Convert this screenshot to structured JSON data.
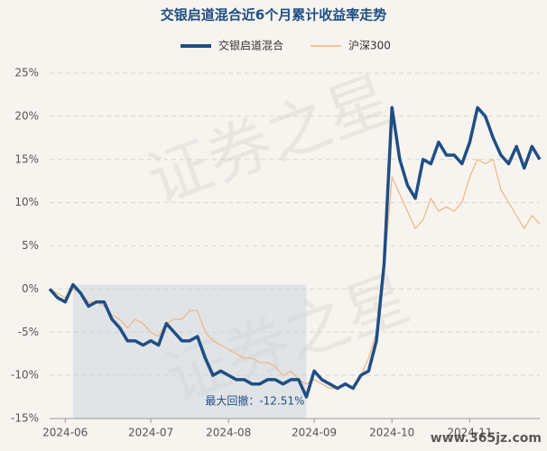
{
  "chart_data": {
    "type": "line",
    "title": "交银启道混合近6个月累计收益率走势",
    "categories": [
      null,
      null,
      "2024-06",
      null,
      null,
      null,
      null,
      null,
      null,
      null,
      null,
      null,
      null,
      "2024-07",
      null,
      null,
      null,
      null,
      null,
      null,
      null,
      null,
      null,
      "2024-08",
      null,
      null,
      null,
      null,
      null,
      null,
      null,
      null,
      null,
      null,
      "2024-09",
      null,
      null,
      null,
      null,
      null,
      null,
      null,
      null,
      null,
      "2024-10",
      null,
      null,
      null,
      null,
      null,
      null,
      null,
      null,
      null,
      "2024-11",
      null,
      null,
      null,
      null,
      null,
      null,
      null,
      null,
      null
    ],
    "series": [
      {
        "name": "交银启道混合",
        "color": "#1f4e85",
        "values": [
          0,
          -1,
          -1.5,
          0.5,
          -0.5,
          -2,
          -1.5,
          -1.5,
          -3.5,
          -4.5,
          -6,
          -6,
          -6.5,
          -6,
          -6.5,
          -4,
          -5,
          -6,
          -6,
          -5.5,
          -8,
          -10,
          -9.5,
          -10,
          -10.5,
          -10.5,
          -11,
          -11,
          -10.5,
          -10.5,
          -11,
          -10.5,
          -10.5,
          -12.5,
          -9.5,
          -10.5,
          -11,
          -11.5,
          -11,
          -11.5,
          -10,
          -9.5,
          -6,
          3,
          21,
          15,
          12,
          10.5,
          15,
          14.5,
          17,
          15.5,
          15.5,
          14.5,
          17,
          21,
          20,
          17.5,
          15.5,
          14.5,
          16.5,
          14,
          16.5,
          15
        ]
      },
      {
        "name": "沪深300",
        "color": "#f2b47e",
        "values": [
          0,
          -0.5,
          -1,
          0,
          -0.5,
          -1.5,
          -1.5,
          -2,
          -3,
          -3.5,
          -4.5,
          -3.5,
          -4,
          -5,
          -5.5,
          -4,
          -3.5,
          -3.5,
          -2.5,
          -2.5,
          -5,
          -6,
          -6.5,
          -7,
          -7.5,
          -8,
          -8,
          -8.5,
          -8.5,
          -9,
          -10,
          -9.5,
          -10.5,
          -11,
          -10.5,
          -11,
          -11.5,
          -11.5,
          -11,
          -11.5,
          -10,
          -8,
          -5,
          2,
          13,
          11,
          9,
          7,
          8,
          10.5,
          9,
          9.5,
          9,
          10,
          13,
          15,
          14.5,
          15,
          11.5,
          10,
          8.5,
          7,
          8.5,
          7.5
        ]
      }
    ],
    "ylim": [
      -15,
      25
    ],
    "yticks": [
      {
        "value": -15,
        "label": "-15%"
      },
      {
        "value": -10,
        "label": "-10%"
      },
      {
        "value": -5,
        "label": "-5%"
      },
      {
        "value": 0,
        "label": "0%"
      },
      {
        "value": 5,
        "label": "5%"
      },
      {
        "value": 10,
        "label": "10%"
      },
      {
        "value": 15,
        "label": "15%"
      },
      {
        "value": 20,
        "label": "20%"
      },
      {
        "value": 25,
        "label": "25%"
      }
    ],
    "grid": true,
    "legend": "top",
    "annotation": "最大回撤：-12.51%",
    "watermark": "证券之星",
    "watermark_site": "www.365jz.com"
  }
}
